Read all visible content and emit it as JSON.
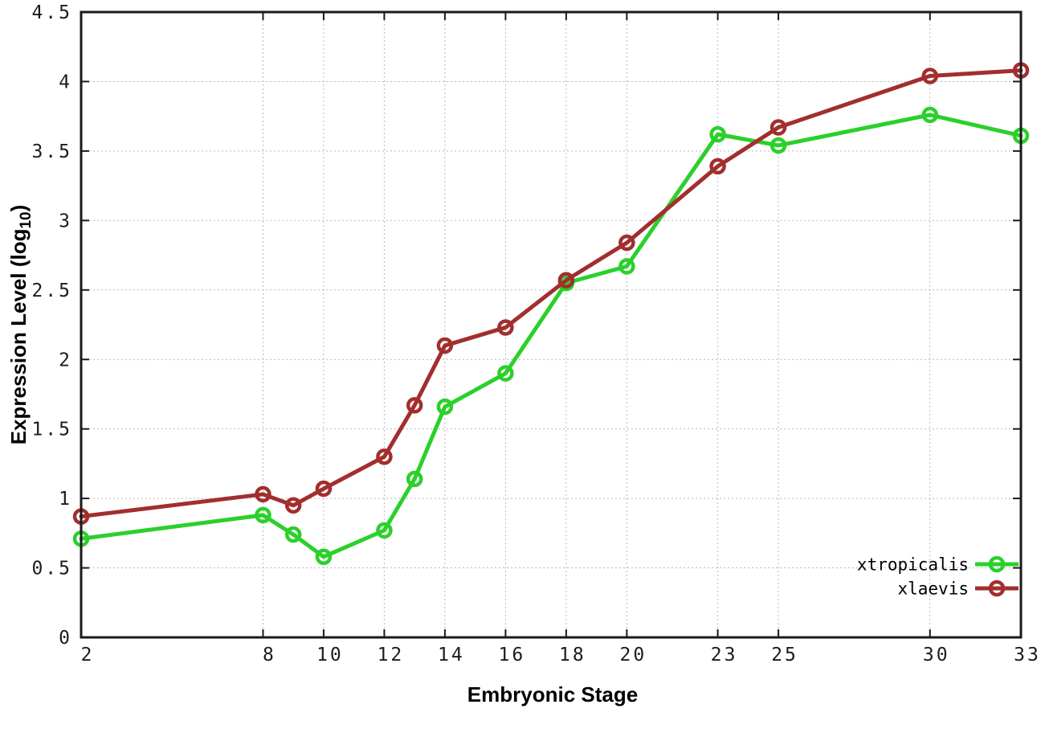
{
  "page": {
    "background": "#ffffff",
    "grid_color": "#b9b9b9",
    "frame_color": "#1a1a1a"
  },
  "chart_data": {
    "type": "line",
    "title": "",
    "xlabel": "Embryonic Stage",
    "ylabel_main": "Expression Level (log",
    "ylabel_subscript": "10",
    "ylabel_suffix": ")",
    "xlim": [
      2,
      33
    ],
    "ylim": [
      0,
      4.5
    ],
    "grid": true,
    "legend_position": "bottom-right-inside",
    "x_ticks": [
      2,
      8,
      10,
      12,
      14,
      16,
      18,
      20,
      23,
      25,
      30,
      33
    ],
    "x_tick_labels": [
      "2",
      "8",
      "10",
      "12",
      "14",
      "16",
      "18",
      "20",
      "23",
      "25",
      "30",
      "33"
    ],
    "y_ticks": [
      0,
      0.5,
      1,
      1.5,
      2,
      2.5,
      3,
      3.5,
      4,
      4.5
    ],
    "y_tick_labels": [
      "0",
      "0.5",
      "1",
      "1.5",
      "2",
      "2.5",
      "3",
      "3.5",
      "4",
      "4.5"
    ],
    "x": [
      2,
      8,
      9,
      10,
      12,
      13,
      14,
      16,
      18,
      20,
      23,
      25,
      30,
      33
    ],
    "series": [
      {
        "name": "xtropicalis",
        "color": "#2bd02b",
        "values": [
          0.71,
          0.88,
          0.74,
          0.58,
          0.77,
          1.14,
          1.66,
          1.9,
          2.55,
          2.67,
          3.62,
          3.54,
          3.76,
          3.61
        ]
      },
      {
        "name": "xlaevis",
        "color": "#a22e2e",
        "values": [
          0.87,
          1.03,
          0.95,
          1.07,
          1.3,
          1.67,
          2.1,
          2.23,
          2.57,
          2.84,
          3.39,
          3.67,
          4.04,
          4.08
        ]
      }
    ]
  }
}
